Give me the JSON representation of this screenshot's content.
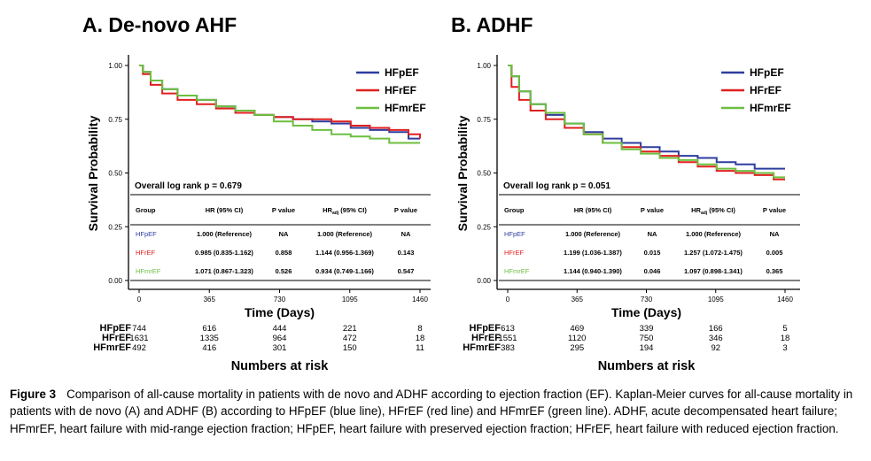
{
  "chart_data": [
    {
      "type": "line",
      "title": "A. De-novo AHF",
      "xlabel": "Time (Days)",
      "ylabel": "Survival Probability",
      "xlim": [
        0,
        1460
      ],
      "ylim": [
        0,
        1
      ],
      "x_ticks": [
        "0",
        "365",
        "730",
        "1095",
        "1460"
      ],
      "y_ticks": [
        "0.00",
        "0.25",
        "0.50",
        "0.75",
        "1.00"
      ],
      "grid": false,
      "legend_position": "top-right",
      "series": [
        {
          "name": "HFpEF",
          "color": "#2e3d9f",
          "x": [
            0,
            20,
            60,
            120,
            200,
            300,
            400,
            500,
            600,
            700,
            800,
            900,
            1000,
            1100,
            1200,
            1300,
            1400,
            1460
          ],
          "y": [
            1.0,
            0.97,
            0.93,
            0.89,
            0.86,
            0.84,
            0.81,
            0.79,
            0.77,
            0.76,
            0.75,
            0.74,
            0.73,
            0.71,
            0.7,
            0.69,
            0.66,
            0.66
          ]
        },
        {
          "name": "HFrEF",
          "color": "#e02020",
          "x": [
            0,
            20,
            60,
            120,
            200,
            300,
            400,
            500,
            600,
            700,
            800,
            900,
            1000,
            1100,
            1200,
            1300,
            1400,
            1460
          ],
          "y": [
            1.0,
            0.96,
            0.91,
            0.87,
            0.84,
            0.82,
            0.8,
            0.78,
            0.77,
            0.76,
            0.75,
            0.75,
            0.74,
            0.72,
            0.71,
            0.7,
            0.68,
            0.66
          ]
        },
        {
          "name": "HFmrEF",
          "color": "#6cbf3f",
          "x": [
            0,
            20,
            60,
            120,
            200,
            300,
            400,
            500,
            600,
            700,
            800,
            900,
            1000,
            1100,
            1200,
            1300,
            1400,
            1460
          ],
          "y": [
            1.0,
            0.97,
            0.93,
            0.89,
            0.86,
            0.84,
            0.81,
            0.79,
            0.77,
            0.74,
            0.72,
            0.7,
            0.68,
            0.67,
            0.66,
            0.64,
            0.64,
            0.64
          ]
        }
      ],
      "annotation": "Overall log rank p = 0.679",
      "table": {
        "headers": [
          "Group",
          "HR (95% CI)",
          "P value",
          "HRadj (95% CI)",
          "P value"
        ],
        "rows": [
          {
            "group": "HFpEF",
            "hr": "1.000 (Reference)",
            "p": "NA",
            "hr_adj": "1.000 (Reference)",
            "p_adj": "NA"
          },
          {
            "group": "HFrEF",
            "hr": "0.985 (0.835-1.162)",
            "p": "0.858",
            "hr_adj": "1.144 (0.956-1.369)",
            "p_adj": "0.143"
          },
          {
            "group": "HFmrEF",
            "hr": "1.071 (0.867-1.323)",
            "p": "0.526",
            "hr_adj": "0.934 (0.749-1.166)",
            "p_adj": "0.547"
          }
        ]
      },
      "risk_table": {
        "title": "Numbers at risk",
        "rows": [
          {
            "group": "HFpEF",
            "values": [
              "744",
              "616",
              "444",
              "221",
              "8"
            ]
          },
          {
            "group": "HFrEF",
            "values": [
              "1631",
              "1335",
              "964",
              "472",
              "18"
            ]
          },
          {
            "group": "HFmrEF",
            "values": [
              "492",
              "416",
              "301",
              "150",
              "11"
            ]
          }
        ]
      }
    },
    {
      "type": "line",
      "title": "B. ADHF",
      "xlabel": "Time (Days)",
      "ylabel": "Survival Probability",
      "xlim": [
        0,
        1460
      ],
      "ylim": [
        0,
        1
      ],
      "x_ticks": [
        "0",
        "365",
        "730",
        "1095",
        "1460"
      ],
      "y_ticks": [
        "0.00",
        "0.25",
        "0.50",
        "0.75",
        "1.00"
      ],
      "grid": false,
      "legend_position": "top-right",
      "series": [
        {
          "name": "HFpEF",
          "color": "#2e3d9f",
          "x": [
            0,
            20,
            60,
            120,
            200,
            300,
            400,
            500,
            600,
            700,
            800,
            900,
            1000,
            1100,
            1200,
            1300,
            1400,
            1460
          ],
          "y": [
            1.0,
            0.95,
            0.88,
            0.82,
            0.77,
            0.73,
            0.69,
            0.66,
            0.64,
            0.62,
            0.6,
            0.58,
            0.57,
            0.55,
            0.54,
            0.52,
            0.52,
            0.52
          ]
        },
        {
          "name": "HFrEF",
          "color": "#e02020",
          "x": [
            0,
            20,
            60,
            120,
            200,
            300,
            400,
            500,
            600,
            700,
            800,
            900,
            1000,
            1100,
            1200,
            1300,
            1400,
            1460
          ],
          "y": [
            1.0,
            0.9,
            0.84,
            0.79,
            0.75,
            0.71,
            0.68,
            0.64,
            0.62,
            0.6,
            0.58,
            0.55,
            0.53,
            0.51,
            0.5,
            0.49,
            0.47,
            0.47
          ]
        },
        {
          "name": "HFmrEF",
          "color": "#6cbf3f",
          "x": [
            0,
            20,
            60,
            120,
            200,
            300,
            400,
            500,
            600,
            700,
            800,
            900,
            1000,
            1100,
            1200,
            1300,
            1400,
            1460
          ],
          "y": [
            1.0,
            0.95,
            0.88,
            0.82,
            0.78,
            0.73,
            0.68,
            0.64,
            0.61,
            0.59,
            0.57,
            0.56,
            0.54,
            0.52,
            0.51,
            0.5,
            0.48,
            0.48
          ]
        }
      ],
      "annotation": "Overall log rank p = 0.051",
      "table": {
        "headers": [
          "Group",
          "HR (95% CI)",
          "P value",
          "HRadj (95% CI)",
          "P value"
        ],
        "rows": [
          {
            "group": "HFpEF",
            "hr": "1.000 (Reference)",
            "p": "NA",
            "hr_adj": "1.000 (Reference)",
            "p_adj": "NA"
          },
          {
            "group": "HFrEF",
            "hr": "1.199 (1.036-1.387)",
            "p": "0.015",
            "hr_adj": "1.257 (1.072-1.475)",
            "p_adj": "0.005"
          },
          {
            "group": "HFmrEF",
            "hr": "1.144 (0.940-1.390)",
            "p": "0.046",
            "hr_adj": "1.097 (0.898-1.341)",
            "p_adj": "0.365"
          }
        ]
      },
      "risk_table": {
        "title": "Numbers at risk",
        "rows": [
          {
            "group": "HFpEF",
            "values": [
              "613",
              "469",
              "339",
              "166",
              "5"
            ]
          },
          {
            "group": "HFrEF",
            "values": [
              "1551",
              "1120",
              "750",
              "346",
              "18"
            ]
          },
          {
            "group": "HFmrEF",
            "values": [
              "383",
              "295",
              "194",
              "92",
              "3"
            ]
          }
        ]
      }
    }
  ],
  "caption": {
    "label": "Figure 3",
    "text": "Comparison of all-cause mortality in patients with de novo and ADHF according to ejection fraction (EF). Kaplan-Meier curves for all-cause mortality in patients with de novo (A) and ADHF (B) according to HFpEF (blue line), HFrEF (red line) and HFmrEF (green line). ADHF, acute decompensated heart failure; HFmrEF, heart failure with mid-range ejection fraction; HFpEF, heart failure with preserved ejection fraction; HFrEF, heart failure with reduced ejection fraction."
  }
}
